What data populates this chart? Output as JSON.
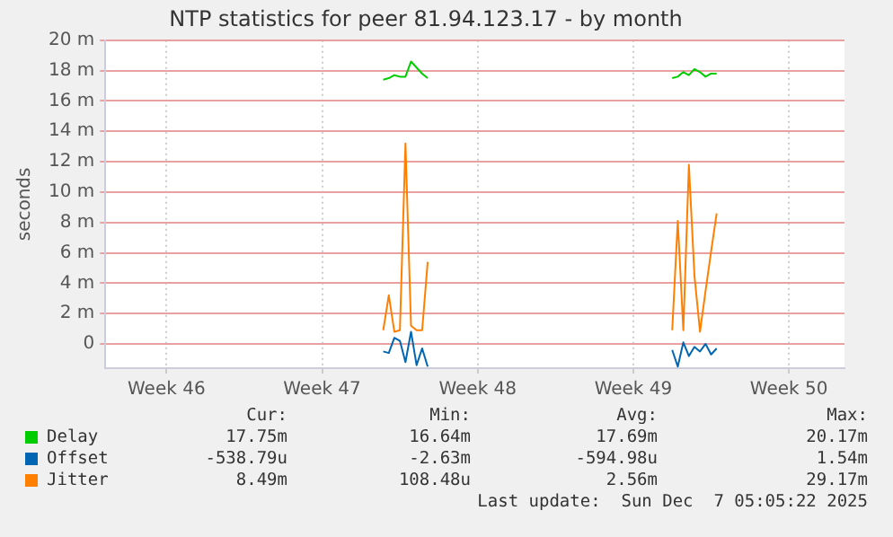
{
  "chart_data": {
    "type": "line",
    "title": "NTP statistics for peer 81.94.123.17 - by month",
    "ylabel": "seconds",
    "categories": [
      null,
      null,
      null,
      null,
      null,
      null,
      null,
      null,
      null,
      null,
      null,
      "Week 46",
      null,
      null,
      null,
      null,
      null,
      null,
      null,
      null,
      null,
      null,
      null,
      null,
      null,
      null,
      null,
      null,
      null,
      null,
      null,
      null,
      null,
      null,
      null,
      null,
      null,
      null,
      null,
      "Week 47",
      null,
      null,
      null,
      null,
      null,
      null,
      null,
      null,
      null,
      null,
      null,
      null,
      null,
      null,
      null,
      null,
      null,
      null,
      null,
      null,
      null,
      null,
      null,
      null,
      null,
      null,
      null,
      "Week 48",
      null,
      null,
      null,
      null,
      null,
      null,
      null,
      null,
      null,
      null,
      null,
      null,
      null,
      null,
      null,
      null,
      null,
      null,
      null,
      null,
      null,
      null,
      null,
      null,
      null,
      null,
      null,
      "Week 49",
      null,
      null,
      null,
      null,
      null,
      null,
      null,
      null,
      null,
      null,
      null,
      null,
      null,
      null,
      null,
      null,
      null,
      null,
      null,
      null,
      null,
      null,
      null,
      null,
      null,
      null,
      null,
      "Week 50",
      null,
      null,
      null,
      null,
      null,
      null,
      null,
      null,
      null,
      null
    ],
    "ylim": [
      -1.6,
      20
    ],
    "yticks": [
      {
        "value": 0,
        "label": "0"
      },
      {
        "value": 2,
        "label": "2 m"
      },
      {
        "value": 4,
        "label": "4 m"
      },
      {
        "value": 6,
        "label": "6 m"
      },
      {
        "value": 8,
        "label": "8 m"
      },
      {
        "value": 10,
        "label": "10 m"
      },
      {
        "value": 12,
        "label": "12 m"
      },
      {
        "value": 14,
        "label": "14 m"
      },
      {
        "value": 16,
        "label": "16 m"
      },
      {
        "value": 18,
        "label": "18 m"
      },
      {
        "value": 20,
        "label": "20 m"
      }
    ],
    "grid": true,
    "legend": "bottom",
    "marker": "none",
    "line_style": "solid",
    "series": [
      {
        "name": "Delay",
        "color": "#00cc00",
        "values": [
          null,
          null,
          null,
          null,
          null,
          null,
          null,
          null,
          null,
          null,
          null,
          null,
          null,
          null,
          null,
          null,
          null,
          null,
          null,
          null,
          null,
          null,
          null,
          null,
          null,
          null,
          null,
          null,
          null,
          null,
          null,
          null,
          null,
          null,
          null,
          null,
          null,
          null,
          null,
          null,
          null,
          null,
          null,
          null,
          null,
          null,
          null,
          null,
          null,
          null,
          17.4,
          17.5,
          17.7,
          17.6,
          17.6,
          18.6,
          18.2,
          17.8,
          17.5,
          null,
          null,
          null,
          null,
          null,
          null,
          null,
          null,
          null,
          null,
          null,
          null,
          null,
          null,
          null,
          null,
          null,
          null,
          null,
          null,
          null,
          null,
          null,
          null,
          null,
          null,
          null,
          null,
          null,
          null,
          null,
          null,
          null,
          null,
          null,
          null,
          null,
          null,
          null,
          null,
          null,
          null,
          null,
          17.5,
          17.6,
          17.9,
          17.7,
          18.1,
          17.9,
          17.6,
          17.8,
          17.8,
          null,
          null,
          null,
          null,
          null,
          null,
          null,
          null,
          null,
          null,
          null,
          null,
          null,
          null,
          null,
          null,
          null,
          null,
          null,
          null,
          null,
          null,
          null
        ]
      },
      {
        "name": "Offset",
        "color": "#0066b3",
        "values": [
          null,
          null,
          null,
          null,
          null,
          null,
          null,
          null,
          null,
          null,
          null,
          null,
          null,
          null,
          null,
          null,
          null,
          null,
          null,
          null,
          null,
          null,
          null,
          null,
          null,
          null,
          null,
          null,
          null,
          null,
          null,
          null,
          null,
          null,
          null,
          null,
          null,
          null,
          null,
          null,
          null,
          null,
          null,
          null,
          null,
          null,
          null,
          null,
          null,
          null,
          -0.5,
          -0.6,
          0.4,
          0.2,
          -1.2,
          0.8,
          -1.4,
          -0.3,
          -1.5,
          null,
          null,
          null,
          null,
          null,
          null,
          null,
          null,
          null,
          null,
          null,
          null,
          null,
          null,
          null,
          null,
          null,
          null,
          null,
          null,
          null,
          null,
          null,
          null,
          null,
          null,
          null,
          null,
          null,
          null,
          null,
          null,
          null,
          null,
          null,
          null,
          null,
          null,
          null,
          null,
          null,
          null,
          null,
          -0.4,
          -1.5,
          0.1,
          -0.8,
          -0.2,
          -0.5,
          0.0,
          -0.7,
          -0.3,
          null,
          null,
          null,
          null,
          null,
          null,
          null,
          null,
          null,
          null,
          null,
          null,
          null,
          null,
          null,
          null,
          null,
          null,
          null,
          null,
          null,
          null,
          null
        ]
      },
      {
        "name": "Jitter",
        "color": "#ff8000",
        "values": [
          null,
          null,
          null,
          null,
          null,
          null,
          null,
          null,
          null,
          null,
          null,
          null,
          null,
          null,
          null,
          null,
          null,
          null,
          null,
          null,
          null,
          null,
          null,
          null,
          null,
          null,
          null,
          null,
          null,
          null,
          null,
          null,
          null,
          null,
          null,
          null,
          null,
          null,
          null,
          null,
          null,
          null,
          null,
          null,
          null,
          null,
          null,
          null,
          null,
          null,
          0.9,
          3.2,
          0.8,
          0.9,
          13.2,
          1.2,
          0.9,
          0.9,
          5.4,
          null,
          null,
          null,
          null,
          null,
          null,
          null,
          null,
          null,
          null,
          null,
          null,
          null,
          null,
          null,
          null,
          null,
          null,
          null,
          null,
          null,
          null,
          null,
          null,
          null,
          null,
          null,
          null,
          null,
          null,
          null,
          null,
          null,
          null,
          null,
          null,
          null,
          null,
          null,
          null,
          null,
          null,
          null,
          0.9,
          8.1,
          0.9,
          11.8,
          4.5,
          0.8,
          3.5,
          6.1,
          8.6,
          null,
          null,
          null,
          null,
          null,
          null,
          null,
          null,
          null,
          null,
          null,
          null,
          null,
          null,
          null,
          null,
          null,
          null,
          null,
          null,
          null,
          null,
          null
        ]
      }
    ],
    "annotations": [
      "Cur:",
      "Min:",
      "Avg:",
      "Max:",
      "17.75m",
      "16.64m",
      "17.69m",
      "20.17m",
      "-538.79u",
      "-2.63m",
      "-594.98u",
      "1.54m",
      "8.49m",
      "108.48u",
      "2.56m",
      "29.17m",
      "Last update:  Sun Dec  7 05:05:22 2025"
    ]
  }
}
